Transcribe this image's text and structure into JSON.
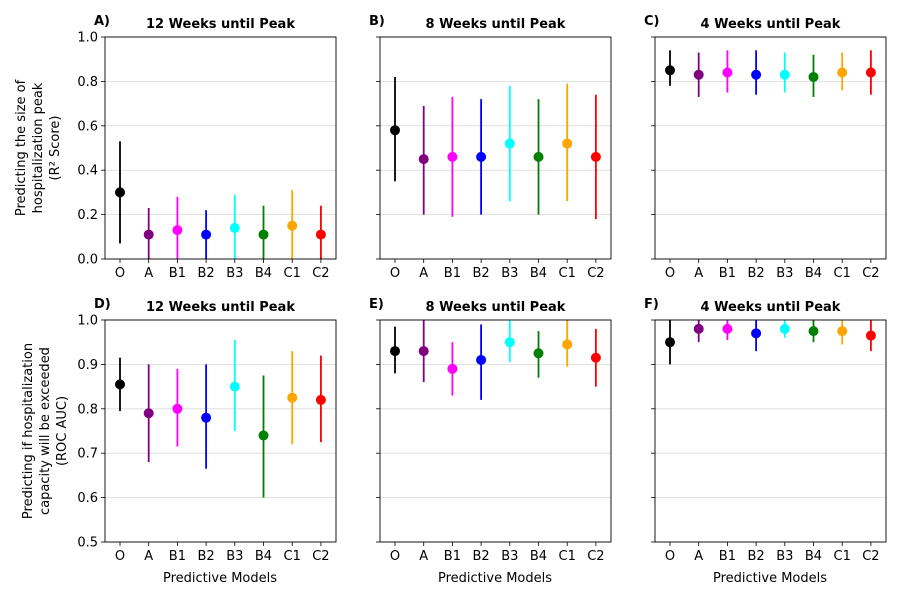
{
  "figure": {
    "row_ylabels": [
      [
        "Predicting the size of",
        "hospitalization peak",
        "(R² Score)"
      ],
      [
        "Predicting if hospitalization",
        "capacity will be exceeded",
        "(ROC AUC)"
      ]
    ],
    "xlabel": "Predictive Models"
  },
  "chart_data": [
    {
      "type": "scatter",
      "panel_label": "A)",
      "title": "12 Weeks until Peak",
      "categories": [
        "O",
        "A",
        "B1",
        "B2",
        "B3",
        "B4",
        "C1",
        "C2"
      ],
      "colors": [
        "#000000",
        "#800080",
        "#ff00ff",
        "#0000ff",
        "#00ffff",
        "#008000",
        "#ffa500",
        "#ff0000"
      ],
      "values": [
        0.3,
        0.11,
        0.13,
        0.11,
        0.14,
        0.11,
        0.15,
        0.11
      ],
      "lower": [
        0.07,
        0.0,
        0.0,
        0.0,
        0.0,
        0.0,
        0.0,
        0.0
      ],
      "upper": [
        0.53,
        0.23,
        0.28,
        0.22,
        0.29,
        0.24,
        0.31,
        0.24
      ],
      "ylim": [
        0.0,
        1.0
      ],
      "yticks": [
        "0.0",
        "0.2",
        "0.4",
        "0.6",
        "0.8",
        "1.0"
      ],
      "grid": true
    },
    {
      "type": "scatter",
      "panel_label": "B)",
      "title": "8 Weeks until Peak",
      "categories": [
        "O",
        "A",
        "B1",
        "B2",
        "B3",
        "B4",
        "C1",
        "C2"
      ],
      "colors": [
        "#000000",
        "#800080",
        "#ff00ff",
        "#0000ff",
        "#00ffff",
        "#008000",
        "#ffa500",
        "#ff0000"
      ],
      "values": [
        0.58,
        0.45,
        0.46,
        0.46,
        0.52,
        0.46,
        0.52,
        0.46
      ],
      "lower": [
        0.35,
        0.2,
        0.19,
        0.2,
        0.26,
        0.2,
        0.26,
        0.18
      ],
      "upper": [
        0.82,
        0.69,
        0.73,
        0.72,
        0.78,
        0.72,
        0.79,
        0.74
      ],
      "ylim": [
        0.0,
        1.0
      ],
      "yticks": [
        "0.0",
        "0.2",
        "0.4",
        "0.6",
        "0.8",
        "1.0"
      ],
      "grid": true
    },
    {
      "type": "scatter",
      "panel_label": "C)",
      "title": "4 Weeks until Peak",
      "categories": [
        "O",
        "A",
        "B1",
        "B2",
        "B3",
        "B4",
        "C1",
        "C2"
      ],
      "colors": [
        "#000000",
        "#800080",
        "#ff00ff",
        "#0000ff",
        "#00ffff",
        "#008000",
        "#ffa500",
        "#ff0000"
      ],
      "values": [
        0.85,
        0.83,
        0.84,
        0.83,
        0.83,
        0.82,
        0.84,
        0.84
      ],
      "lower": [
        0.78,
        0.73,
        0.75,
        0.74,
        0.75,
        0.73,
        0.76,
        0.74
      ],
      "upper": [
        0.94,
        0.93,
        0.94,
        0.94,
        0.93,
        0.92,
        0.93,
        0.94
      ],
      "ylim": [
        0.0,
        1.0
      ],
      "yticks": [
        "0.0",
        "0.2",
        "0.4",
        "0.6",
        "0.8",
        "1.0"
      ],
      "grid": true
    },
    {
      "type": "scatter",
      "panel_label": "D)",
      "title": "12 Weeks until Peak",
      "categories": [
        "O",
        "A",
        "B1",
        "B2",
        "B3",
        "B4",
        "C1",
        "C2"
      ],
      "colors": [
        "#000000",
        "#800080",
        "#ff00ff",
        "#0000ff",
        "#00ffff",
        "#008000",
        "#ffa500",
        "#ff0000"
      ],
      "values": [
        0.855,
        0.79,
        0.8,
        0.78,
        0.85,
        0.74,
        0.825,
        0.82
      ],
      "lower": [
        0.795,
        0.68,
        0.715,
        0.665,
        0.75,
        0.6,
        0.72,
        0.725
      ],
      "upper": [
        0.915,
        0.9,
        0.89,
        0.9,
        0.955,
        0.875,
        0.93,
        0.92
      ],
      "ylim": [
        0.5,
        1.0
      ],
      "yticks": [
        "0.5",
        "0.6",
        "0.7",
        "0.8",
        "0.9",
        "1.0"
      ],
      "grid": true
    },
    {
      "type": "scatter",
      "panel_label": "E)",
      "title": "8 Weeks until Peak",
      "categories": [
        "O",
        "A",
        "B1",
        "B2",
        "B3",
        "B4",
        "C1",
        "C2"
      ],
      "colors": [
        "#000000",
        "#800080",
        "#ff00ff",
        "#0000ff",
        "#00ffff",
        "#008000",
        "#ffa500",
        "#ff0000"
      ],
      "values": [
        0.93,
        0.93,
        0.89,
        0.91,
        0.95,
        0.925,
        0.945,
        0.915
      ],
      "lower": [
        0.88,
        0.86,
        0.83,
        0.82,
        0.905,
        0.87,
        0.895,
        0.85
      ],
      "upper": [
        0.985,
        1.0,
        0.95,
        0.99,
        1.0,
        0.975,
        1.0,
        0.98
      ],
      "ylim": [
        0.5,
        1.0
      ],
      "yticks": [
        "0.5",
        "0.6",
        "0.7",
        "0.8",
        "0.9",
        "1.0"
      ],
      "grid": true
    },
    {
      "type": "scatter",
      "panel_label": "F)",
      "title": "4 Weeks until Peak",
      "categories": [
        "O",
        "A",
        "B1",
        "B2",
        "B3",
        "B4",
        "C1",
        "C2"
      ],
      "colors": [
        "#000000",
        "#800080",
        "#ff00ff",
        "#0000ff",
        "#00ffff",
        "#008000",
        "#ffa500",
        "#ff0000"
      ],
      "values": [
        0.95,
        0.98,
        0.98,
        0.97,
        0.98,
        0.975,
        0.975,
        0.965
      ],
      "lower": [
        0.9,
        0.95,
        0.955,
        0.93,
        0.96,
        0.95,
        0.945,
        0.93
      ],
      "upper": [
        1.0,
        1.0,
        1.0,
        1.0,
        1.0,
        1.0,
        1.0,
        1.0
      ],
      "ylim": [
        0.5,
        1.0
      ],
      "yticks": [
        "0.5",
        "0.6",
        "0.7",
        "0.8",
        "0.9",
        "1.0"
      ],
      "grid": true
    }
  ]
}
